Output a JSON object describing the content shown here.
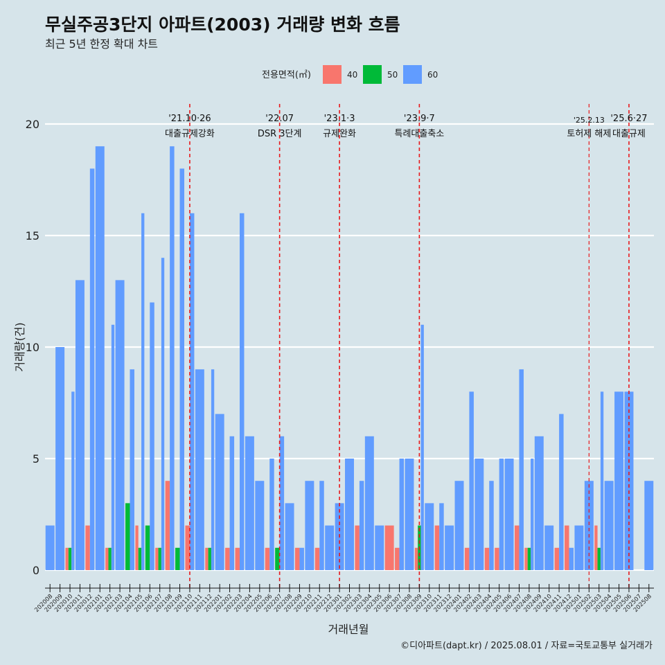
{
  "chart_data": {
    "type": "bar",
    "title": "무실주공3단지 아파트(2003) 거래량 변화 흐름",
    "subtitle": "최근 5년 한정 확대 차트",
    "xlabel": "거래년월",
    "ylabel": "거래량(건)",
    "ylim": [
      0,
      20
    ],
    "yticks": [
      0,
      5,
      10,
      15,
      20
    ],
    "grid": true,
    "legend": {
      "title": "전용면적(㎡)",
      "position": "top"
    },
    "colors": {
      "40": "#f8766d",
      "50": "#00ba38",
      "60": "#619cff"
    },
    "categories": [
      "202008",
      "202009",
      "202010",
      "202011",
      "202012",
      "202101",
      "202102",
      "202103",
      "202104",
      "202105",
      "202106",
      "202107",
      "202108",
      "202109",
      "202110",
      "202111",
      "202112",
      "202201",
      "202202",
      "202203",
      "202204",
      "202205",
      "202206",
      "202207",
      "202208",
      "202209",
      "202210",
      "202211",
      "202212",
      "202301",
      "202302",
      "202303",
      "202304",
      "202305",
      "202306",
      "202307",
      "202308",
      "202309",
      "202310",
      "202311",
      "202312",
      "202401",
      "202402",
      "202403",
      "202404",
      "202405",
      "202406",
      "202407",
      "202408",
      "202409",
      "202410",
      "202411",
      "202412",
      "202501",
      "202502",
      "202503",
      "202504",
      "202505",
      "202506",
      "202507",
      "202508"
    ],
    "series": [
      {
        "name": "40",
        "values": [
          0,
          0,
          1,
          0,
          2,
          0,
          1,
          0,
          0,
          2,
          0,
          1,
          4,
          0,
          2,
          0,
          1,
          0,
          1,
          1,
          0,
          0,
          1,
          0,
          0,
          1,
          0,
          1,
          0,
          0,
          0,
          2,
          0,
          0,
          2,
          1,
          0,
          1,
          0,
          2,
          0,
          0,
          1,
          0,
          1,
          1,
          0,
          2,
          1,
          0,
          0,
          1,
          2,
          0,
          0,
          2,
          0,
          0,
          0,
          0,
          0
        ]
      },
      {
        "name": "50",
        "values": [
          0,
          0,
          1,
          0,
          0,
          0,
          1,
          0,
          3,
          1,
          2,
          1,
          0,
          1,
          0,
          0,
          1,
          0,
          0,
          0,
          0,
          0,
          0,
          1,
          0,
          0,
          0,
          0,
          0,
          0,
          0,
          0,
          0,
          0,
          0,
          0,
          0,
          2,
          0,
          0,
          0,
          0,
          0,
          0,
          0,
          0,
          0,
          0,
          1,
          0,
          0,
          0,
          0,
          0,
          0,
          1,
          0,
          0,
          0,
          0,
          0
        ]
      },
      {
        "name": "60",
        "values": [
          2,
          10,
          8,
          13,
          18,
          19,
          11,
          13,
          9,
          16,
          12,
          14,
          19,
          18,
          16,
          9,
          9,
          7,
          6,
          16,
          6,
          4,
          5,
          6,
          3,
          1,
          4,
          4,
          2,
          3,
          5,
          4,
          6,
          2,
          0,
          5,
          5,
          11,
          3,
          3,
          2,
          4,
          8,
          5,
          4,
          5,
          5,
          9,
          5,
          6,
          2,
          7,
          1,
          2,
          4,
          8,
          4,
          8,
          8,
          0,
          4
        ]
      }
    ],
    "annotations": [
      {
        "x": "202110",
        "date": "'21.10·26",
        "label": "대출규제강화"
      },
      {
        "x": "202207",
        "date": "'22.07",
        "label": "DSR 3단계"
      },
      {
        "x": "202301",
        "date": "'23.1·3",
        "label": "규제완화"
      },
      {
        "x": "202309",
        "date": "'23.9·7",
        "label": "특례대출축소"
      },
      {
        "x": "202502",
        "date": "'25.2.13",
        "label": "토허제 해제"
      },
      {
        "x": "202506",
        "date": "'25.6·27",
        "label": "대출규제"
      }
    ],
    "caption": "©디아파트(dapt.kr) / 2025.08.01 / 자료=국토교통부 실거래가"
  }
}
